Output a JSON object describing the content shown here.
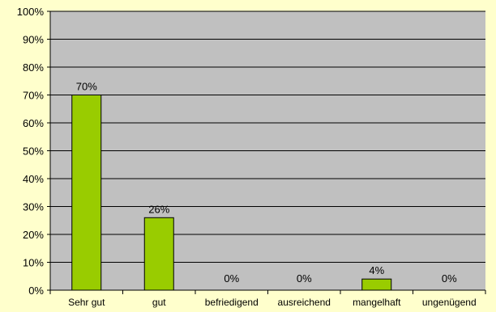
{
  "chart_data": {
    "type": "bar",
    "categories": [
      "Sehr gut",
      "gut",
      "befriedigend",
      "ausreichend",
      "mangelhaft",
      "ungenügend"
    ],
    "values": [
      70,
      26,
      0,
      0,
      4,
      0
    ],
    "data_labels": [
      "70%",
      "26%",
      "0%",
      "0%",
      "4%",
      "0%"
    ],
    "title": "",
    "xlabel": "",
    "ylabel": "",
    "ylim": [
      0,
      100
    ],
    "y_ticks": [
      0,
      10,
      20,
      30,
      40,
      50,
      60,
      70,
      80,
      90,
      100
    ],
    "y_tick_labels": [
      "0%",
      "10%",
      "20%",
      "30%",
      "40%",
      "50%",
      "60%",
      "70%",
      "80%",
      "90%",
      "100%"
    ],
    "grid": true,
    "colors": {
      "page_background": "#ffffcc",
      "plot_background": "#c0c0c0",
      "bar_fill": "#99cc00",
      "bar_stroke": "#000000",
      "grid": "#000000"
    }
  }
}
